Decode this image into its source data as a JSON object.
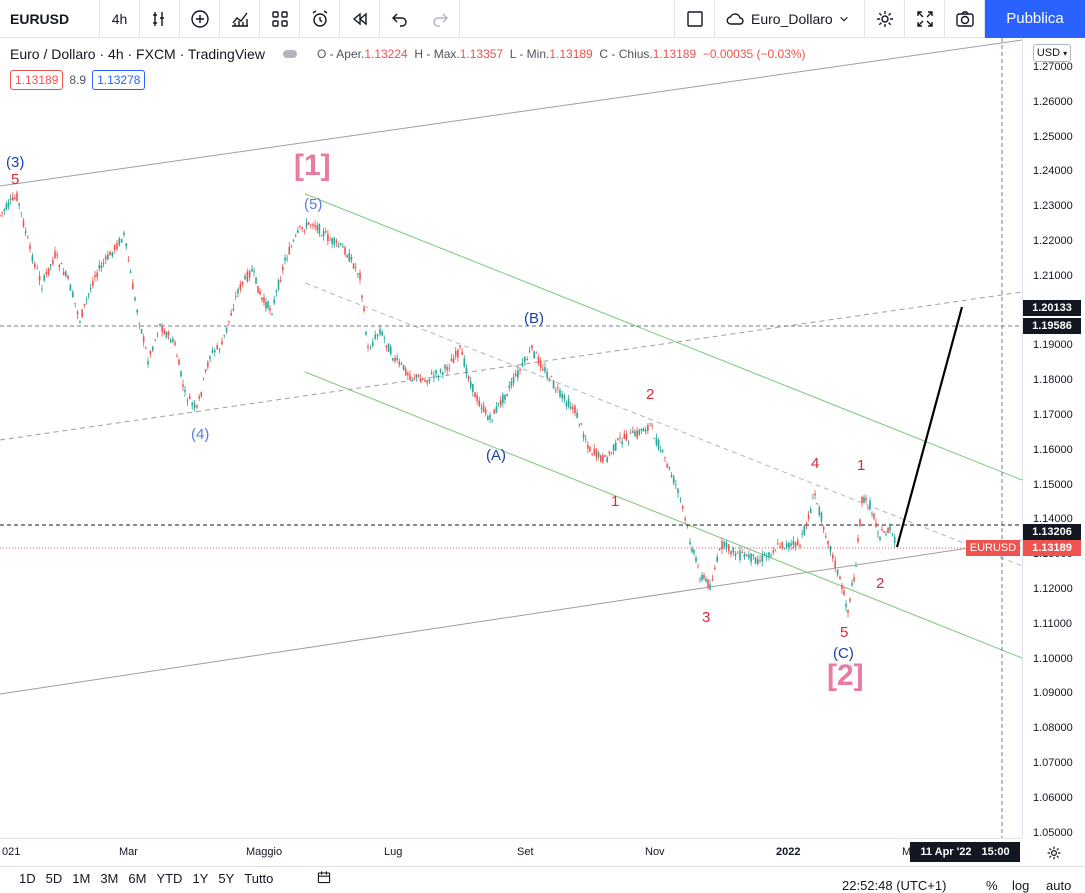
{
  "toolbar": {
    "symbol": "EURUSD",
    "interval": "4h",
    "layout_name": "Euro_Dollaro",
    "publish_label": "Pubblica",
    "icons": [
      "indicators-icon",
      "add-icon",
      "chart-type-icon",
      "templates-icon",
      "alert-icon",
      "replay-icon",
      "undo-icon",
      "redo-icon",
      "layout-square-icon",
      "cloud-icon",
      "chevron-down-icon",
      "settings-icon",
      "fullscreen-icon",
      "camera-icon"
    ]
  },
  "legend": {
    "title": "Euro / Dollaro · 4h · FXCM · TradingView",
    "o_label": "O - Aper.",
    "o": "1.13224",
    "h_label": "H - Max.",
    "h": "1.13357",
    "l_label": "L - Min.",
    "l": "1.13189",
    "c_label": "C - Chius.",
    "c": "1.13189",
    "change": "−0.00035 (−0.03%)",
    "bid": "1.13189",
    "spread": "8.9",
    "ask": "1.13278"
  },
  "price_axis": {
    "currency": "USD",
    "ticks": [
      "1.27000",
      "1.26000",
      "1.25000",
      "1.24000",
      "1.23000",
      "1.22000",
      "1.21000",
      "1.20000",
      "1.19000",
      "1.18000",
      "1.17000",
      "1.16000",
      "1.15000",
      "1.14000",
      "1.13000",
      "1.12000",
      "1.11000",
      "1.10000",
      "1.09000",
      "1.08000",
      "1.07000",
      "1.06000",
      "1.05000"
    ],
    "labels": [
      {
        "value": "1.20133",
        "style": "dark"
      },
      {
        "value": "1.19586",
        "style": "dark"
      },
      {
        "value": "1.13206",
        "style": "dark"
      },
      {
        "value": "1.13189",
        "style": "red"
      }
    ],
    "symbol_tag": "EURUSD"
  },
  "time_axis": {
    "ticks": [
      "021",
      "Mar",
      "Maggio",
      "Lug",
      "Set",
      "Nov",
      "2022",
      "M"
    ],
    "cursor_date": "11 Apr '22",
    "cursor_time": "15:00"
  },
  "waves": [
    "(3)",
    "5",
    "[1]",
    "(5)",
    "(4)",
    "(B)",
    "(A)",
    "2",
    "1",
    "4",
    "1",
    "3",
    "2",
    "5",
    "(C)",
    "[2]"
  ],
  "bottom": {
    "ranges": [
      "1D",
      "5D",
      "1M",
      "3M",
      "6M",
      "YTD",
      "1Y",
      "5Y",
      "Tutto"
    ],
    "clock": "22:52:48 (UTC+1)",
    "percent": "%",
    "log": "log",
    "auto": "auto"
  },
  "colors": {
    "up": "#26a69a",
    "down": "#ef5350",
    "accent": "#2962ff",
    "channel": "#7dc77d"
  }
}
